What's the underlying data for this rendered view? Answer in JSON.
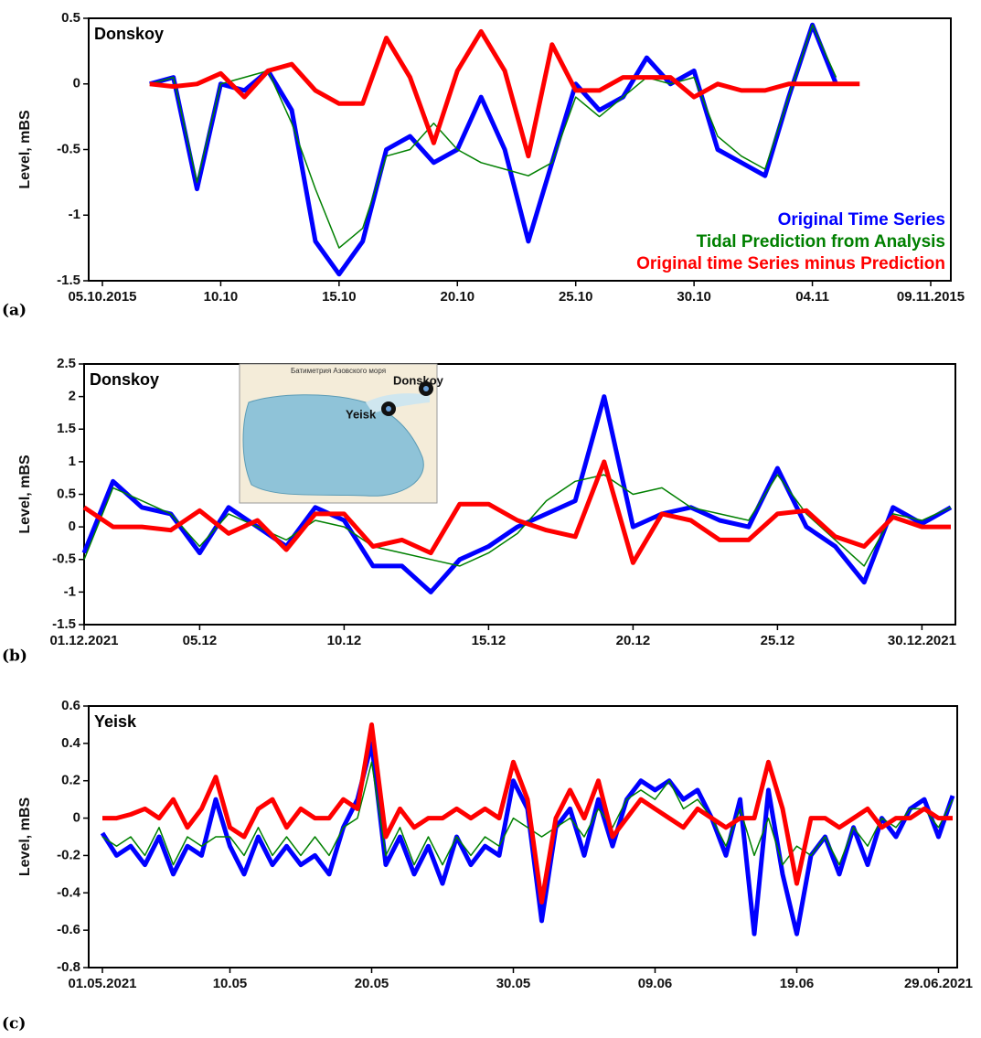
{
  "chart_data": [
    {
      "type": "line",
      "panel_label": "(a)",
      "station": "Donskoy",
      "y_label": "Level, mBS",
      "categories": [
        "05.10.2015",
        null,
        null,
        null,
        null,
        "10.10",
        null,
        null,
        null,
        null,
        "15.10",
        null,
        null,
        null,
        null,
        "20.10",
        null,
        null,
        null,
        null,
        "25.10",
        null,
        null,
        null,
        null,
        "30.10",
        null,
        null,
        null,
        null,
        "04.11",
        null,
        null,
        null,
        null,
        "09.11.2015"
      ],
      "ylim": [
        -1.5,
        0.5
      ],
      "yticks": [
        -1.5,
        -1,
        -0.5,
        0,
        0.5
      ],
      "legend": "lower right",
      "series": [
        {
          "name": "Original Time Series",
          "color": "#0000ff",
          "values": [
            null,
            null,
            0,
            0.05,
            -0.8,
            0,
            -0.05,
            0.1,
            -0.2,
            -1.2,
            -1.45,
            -1.2,
            -0.5,
            -0.4,
            -0.6,
            -0.5,
            -0.1,
            -0.5,
            -1.2,
            -0.6,
            0,
            -0.2,
            -0.1,
            0.2,
            0,
            0.1,
            -0.5,
            -0.6,
            -0.7,
            -0.1,
            0.45,
            0,
            null,
            null,
            null,
            null
          ]
        },
        {
          "name": "Tidal Prediction from Analysis",
          "color": "#008000",
          "values": [
            null,
            null,
            0,
            0.05,
            -0.75,
            0,
            0.05,
            0.1,
            -0.3,
            -0.8,
            -1.25,
            -1.1,
            -0.55,
            -0.5,
            -0.3,
            -0.5,
            -0.6,
            -0.65,
            -0.7,
            -0.6,
            -0.1,
            -0.25,
            -0.1,
            0.05,
            0,
            0.05,
            -0.4,
            -0.55,
            -0.65,
            -0.1,
            0.45,
            0.05,
            null,
            null,
            null,
            null
          ]
        },
        {
          "name": "Original time Series minus Prediction",
          "color": "#ff0000",
          "values": [
            null,
            null,
            0,
            -0.02,
            0,
            0.08,
            -0.1,
            0.1,
            0.15,
            -0.05,
            -0.15,
            -0.15,
            0.35,
            0.05,
            -0.45,
            0.1,
            0.4,
            0.1,
            -0.55,
            0.3,
            -0.05,
            -0.05,
            0.05,
            0.05,
            0.05,
            -0.1,
            0,
            -0.05,
            -0.05,
            0,
            0,
            0,
            0,
            null,
            null,
            null
          ]
        }
      ]
    },
    {
      "type": "line",
      "panel_label": "(b)",
      "station": "Donskoy",
      "y_label": "Level, mBS",
      "inset": {
        "title": "Батиметрия Азовского моря",
        "labels": [
          "Donskoy",
          "Yeisk"
        ]
      },
      "categories": [
        "01.12.2021",
        null,
        null,
        null,
        "05.12",
        null,
        null,
        null,
        null,
        "10.12",
        null,
        null,
        null,
        null,
        "15.12",
        null,
        null,
        null,
        null,
        "20.12",
        null,
        null,
        null,
        null,
        "25.12",
        null,
        null,
        null,
        null,
        "30.12.2021",
        null
      ],
      "ylim": [
        -1.5,
        2.5
      ],
      "yticks": [
        -1.5,
        -1,
        -0.5,
        0,
        0.5,
        1,
        1.5,
        2,
        2.5
      ],
      "series": [
        {
          "color": "#0000ff",
          "values": [
            -0.4,
            0.7,
            0.3,
            0.2,
            -0.4,
            0.3,
            0,
            -0.3,
            0.3,
            0.1,
            -0.6,
            -0.6,
            -1,
            -0.5,
            -0.3,
            0,
            0.2,
            0.4,
            2,
            0,
            0.2,
            0.3,
            0.1,
            0,
            0.9,
            0,
            -0.3,
            -0.85,
            0.3,
            0.05,
            0.3
          ]
        },
        {
          "color": "#008000",
          "values": [
            -0.5,
            0.6,
            0.4,
            0.2,
            -0.3,
            0.2,
            0,
            -0.2,
            0.1,
            0,
            -0.3,
            -0.4,
            -0.5,
            -0.6,
            -0.4,
            -0.1,
            0.4,
            0.7,
            0.8,
            0.5,
            0.6,
            0.3,
            0.2,
            0.1,
            0.8,
            0.2,
            -0.2,
            -0.6,
            0.2,
            0.1,
            0.3
          ]
        },
        {
          "color": "#ff0000",
          "values": [
            0.3,
            0,
            0,
            -0.05,
            0.25,
            -0.1,
            0.1,
            -0.35,
            0.2,
            0.2,
            -0.3,
            -0.2,
            -0.4,
            0.35,
            0.35,
            0.1,
            -0.05,
            -0.15,
            1,
            -0.55,
            0.2,
            0.1,
            -0.2,
            -0.2,
            0.2,
            0.25,
            -0.15,
            -0.3,
            0.15,
            0,
            0
          ]
        }
      ]
    },
    {
      "type": "line",
      "panel_label": "(c)",
      "station": "Yeisk",
      "y_label": "Level, mBS",
      "categories": [
        "01.05.2021",
        null,
        null,
        null,
        null,
        null,
        null,
        null,
        null,
        "10.05",
        null,
        null,
        null,
        null,
        null,
        null,
        null,
        null,
        null,
        "20.05",
        null,
        null,
        null,
        null,
        null,
        null,
        null,
        null,
        null,
        "30.05",
        null,
        null,
        null,
        null,
        null,
        null,
        null,
        null,
        null,
        "09.06",
        null,
        null,
        null,
        null,
        null,
        null,
        null,
        null,
        null,
        "19.06",
        null,
        null,
        null,
        null,
        null,
        null,
        null,
        null,
        null,
        "29.06.2021",
        null
      ],
      "ylim": [
        -0.8,
        0.6
      ],
      "yticks": [
        -0.8,
        -0.6,
        -0.4,
        -0.2,
        0,
        0.2,
        0.4,
        0.6
      ],
      "series": [
        {
          "color": "#0000ff",
          "values": [
            -0.08,
            -0.2,
            -0.15,
            -0.25,
            -0.1,
            -0.3,
            -0.15,
            -0.2,
            0.1,
            -0.15,
            -0.3,
            -0.1,
            -0.25,
            -0.15,
            -0.25,
            -0.2,
            -0.3,
            -0.05,
            0.1,
            0.4,
            -0.25,
            -0.1,
            -0.3,
            -0.15,
            -0.35,
            -0.1,
            -0.25,
            -0.15,
            -0.2,
            0.2,
            0.05,
            -0.55,
            -0.05,
            0.05,
            -0.2,
            0.1,
            -0.15,
            0.1,
            0.2,
            0.15,
            0.2,
            0.1,
            0.15,
            0,
            -0.2,
            0.1,
            -0.62,
            0.15,
            -0.3,
            -0.62,
            -0.2,
            -0.1,
            -0.3,
            -0.05,
            -0.25,
            0,
            -0.1,
            0.05,
            0.1,
            -0.1,
            0.12
          ]
        },
        {
          "color": "#008000",
          "values": [
            -0.1,
            -0.15,
            -0.1,
            -0.2,
            -0.05,
            -0.25,
            -0.1,
            -0.15,
            -0.1,
            -0.1,
            -0.2,
            -0.05,
            -0.2,
            -0.1,
            -0.2,
            -0.1,
            -0.2,
            -0.05,
            0,
            0.3,
            -0.2,
            -0.05,
            -0.25,
            -0.1,
            -0.25,
            -0.1,
            -0.2,
            -0.1,
            -0.15,
            0,
            -0.05,
            -0.1,
            -0.05,
            0,
            -0.1,
            0.05,
            -0.05,
            0.1,
            0.15,
            0.1,
            0.2,
            0.05,
            0.1,
            0,
            -0.15,
            0.05,
            -0.2,
            0,
            -0.25,
            -0.15,
            -0.2,
            -0.1,
            -0.25,
            -0.05,
            -0.15,
            0,
            -0.05,
            0.05,
            0.05,
            -0.05,
            0.1
          ]
        },
        {
          "color": "#ff0000",
          "values": [
            0,
            0,
            0.02,
            0.05,
            0,
            0.1,
            -0.05,
            0.05,
            0.22,
            -0.05,
            -0.1,
            0.05,
            0.1,
            -0.05,
            0.05,
            0,
            0,
            0.1,
            0.05,
            0.5,
            -0.1,
            0.05,
            -0.05,
            0,
            0,
            0.05,
            0,
            0.05,
            0,
            0.3,
            0.1,
            -0.45,
            0,
            0.15,
            0,
            0.2,
            -0.1,
            0,
            0.1,
            0.05,
            0,
            -0.05,
            0.05,
            0,
            -0.05,
            0,
            0,
            0.3,
            0.05,
            -0.35,
            0,
            0,
            -0.05,
            0,
            0.05,
            -0.05,
            0,
            0,
            0.05,
            0,
            0
          ]
        }
      ]
    }
  ]
}
